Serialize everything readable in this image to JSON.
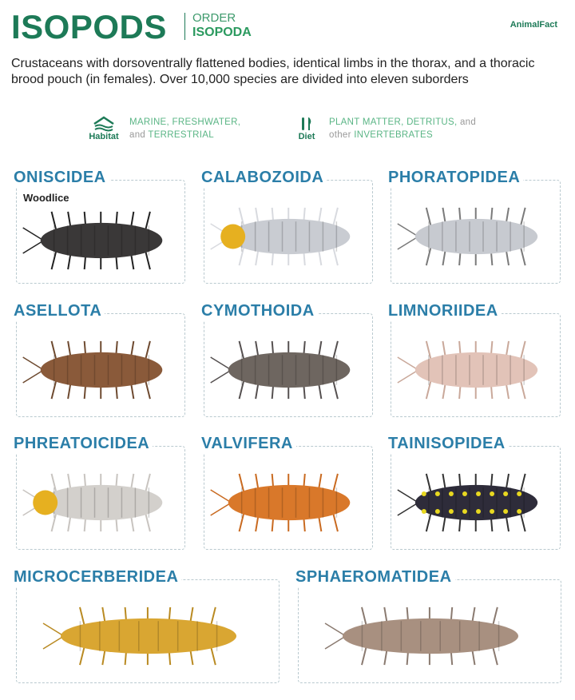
{
  "header": {
    "title": "ISOPODS",
    "order_label": "ORDER",
    "order_name": "ISOPODA",
    "logo": "AnimalFact"
  },
  "description": "Crustaceans with dorsoventrally flattened bodies, identical limbs in the thorax, and a thoracic brood pouch (in females). Over 10,000 species are divided into eleven suborders",
  "facts": {
    "habitat": {
      "icon": "habitat-icon",
      "label": "Habitat",
      "line1": "MARINE, FRESHWATER,",
      "line2_small": "and ",
      "line2": "TERRESTRIAL"
    },
    "diet": {
      "icon": "fork-knife-icon",
      "label": "Diet",
      "line1": "PLANT MATTER, DETRITUS,",
      "line1_small": " and",
      "line2_small": "other ",
      "line2": "INVERTEBRATES"
    }
  },
  "colors": {
    "title": "#1d7a57",
    "suborder_title": "#2b7ea8",
    "fact_text": "#5ab585"
  },
  "suborders": [
    {
      "name": "ONISCIDEA",
      "common_name": "Woodlice",
      "body_color": "#3a3838",
      "leg_color": "#222222"
    },
    {
      "name": "CALABOZOIDA",
      "body_color": "#c9ccd2",
      "leg_color": "#d8dadf",
      "head_color": "#e6b020"
    },
    {
      "name": "PHORATOPIDEA",
      "body_color": "#c7cad0",
      "leg_color": "#7a7a7a"
    },
    {
      "name": "ASELLOTA",
      "body_color": "#8a5a3a",
      "leg_color": "#6e4a30"
    },
    {
      "name": "CYMOTHOIDA",
      "body_color": "#6e6660",
      "leg_color": "#555050"
    },
    {
      "name": "LIMNORIIDEA",
      "body_color": "#e2c3b8",
      "leg_color": "#c9a89a"
    },
    {
      "name": "PHREATOICIDEA",
      "body_color": "#d3d0cc",
      "leg_color": "#c8c4c0",
      "head_color": "#e6b020"
    },
    {
      "name": "VALVIFERA",
      "body_color": "#d9782a",
      "leg_color": "#c96a20"
    },
    {
      "name": "TAINISOPIDEA",
      "body_color": "#2e2c3a",
      "leg_color": "#333333",
      "spot_color": "#e8d820"
    },
    {
      "name": "MICROCERBERIDEA",
      "body_color": "#d9a632",
      "leg_color": "#b98a22"
    },
    {
      "name": "SPHAEROMATIDEA",
      "body_color": "#a89080",
      "leg_color": "#8a7a70"
    }
  ]
}
